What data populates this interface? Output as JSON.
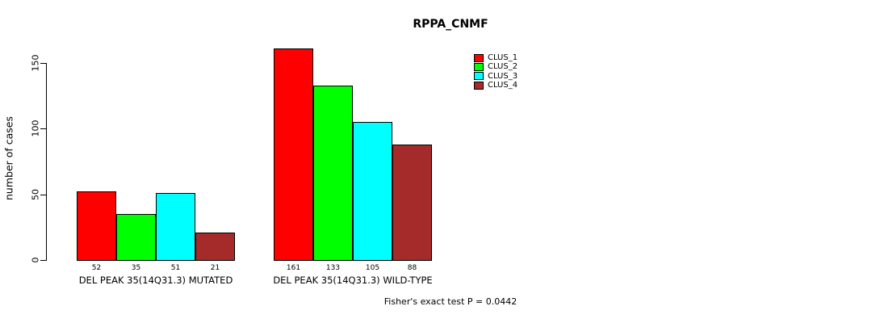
{
  "title": "RPPA_CNMF",
  "ylabel": "number of cases",
  "footer": "Fisher's exact test P = 0.0442",
  "chart_data": {
    "type": "bar",
    "categories": [
      "DEL PEAK 35(14Q31.3) MUTATED",
      "DEL PEAK 35(14Q31.3) WILD-TYPE"
    ],
    "series": [
      {
        "name": "CLUS_1",
        "color": "#ff0000",
        "values": [
          52,
          161
        ]
      },
      {
        "name": "CLUS_2",
        "color": "#00ff00",
        "values": [
          35,
          133
        ]
      },
      {
        "name": "CLUS_3",
        "color": "#00ffff",
        "values": [
          51,
          105
        ]
      },
      {
        "name": "CLUS_4",
        "color": "#a52a2a",
        "values": [
          21,
          88
        ]
      }
    ],
    "bar_value_labels": [
      [
        "52",
        "35",
        "51",
        "21"
      ],
      [
        "161",
        "133",
        "105",
        "88"
      ]
    ],
    "yticks": [
      0,
      50,
      100,
      150
    ],
    "ylim": [
      0,
      165
    ],
    "grid": false,
    "legend_position": "top-right",
    "legend_entries": [
      "CLUS_1",
      "CLUS_2",
      "CLUS_3",
      "CLUS_4"
    ]
  }
}
